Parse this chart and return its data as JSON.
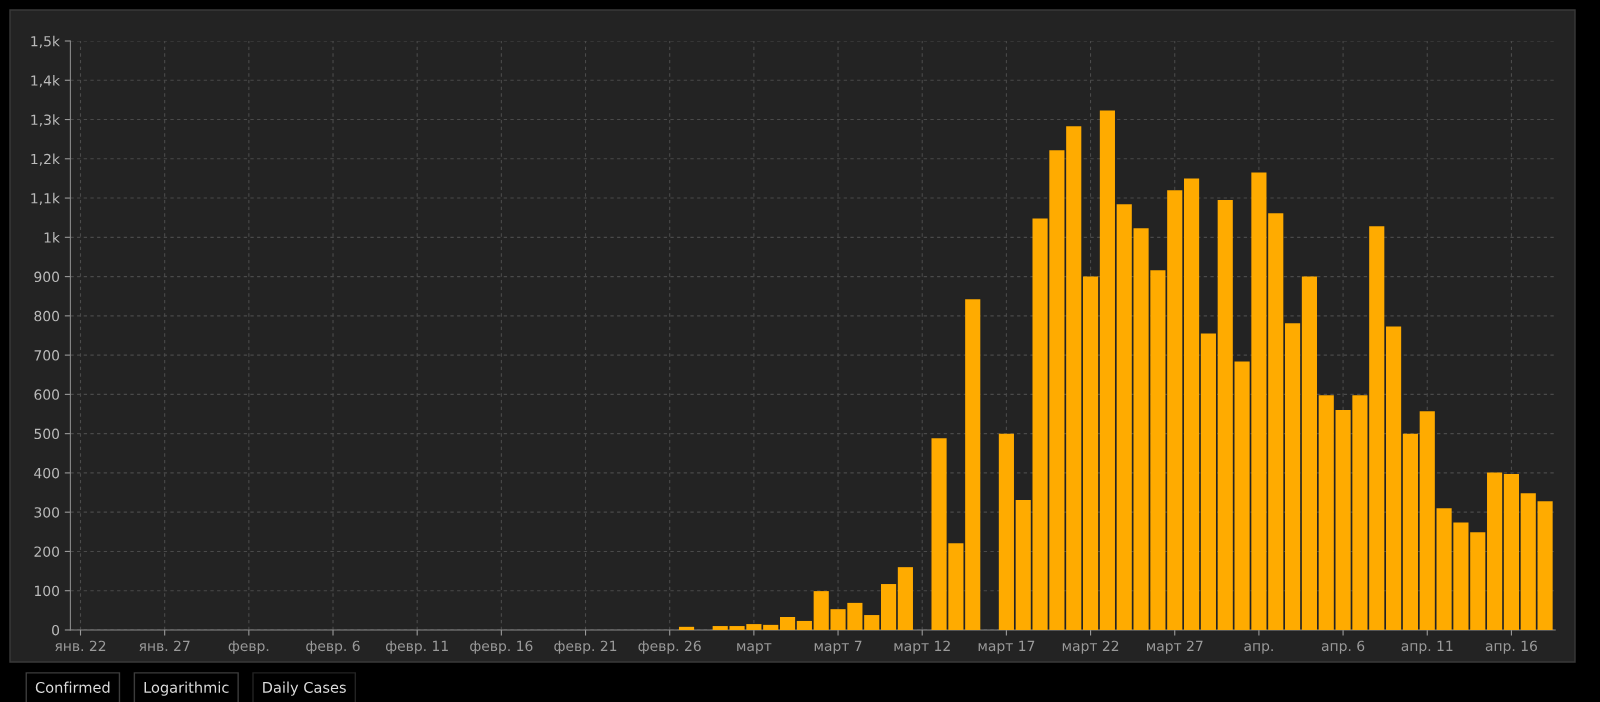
{
  "chart_data": {
    "type": "bar",
    "categories": [
      "янв. 22",
      null,
      null,
      null,
      null,
      "янв. 27",
      null,
      null,
      null,
      null,
      "февр.",
      null,
      null,
      null,
      null,
      "февр. 6",
      null,
      null,
      null,
      null,
      "февр. 11",
      null,
      null,
      null,
      null,
      "февр. 16",
      null,
      null,
      null,
      null,
      "февр. 21",
      null,
      null,
      null,
      null,
      "февр. 26",
      null,
      null,
      null,
      null,
      "март",
      null,
      null,
      null,
      null,
      "март 7",
      null,
      null,
      null,
      null,
      "март 12",
      null,
      null,
      null,
      null,
      "март 17",
      null,
      null,
      null,
      null,
      "март 22",
      null,
      null,
      null,
      null,
      "март 27",
      null,
      null,
      null,
      null,
      "апр.",
      null,
      null,
      null,
      null,
      "апр. 6",
      null,
      null,
      null,
      null,
      "апр. 11",
      null,
      null,
      null,
      null,
      "апр. 16",
      null,
      null
    ],
    "values": [
      0,
      0,
      0,
      0,
      0,
      0,
      0,
      0,
      0,
      0,
      0,
      0,
      0,
      0,
      0,
      0,
      0,
      0,
      0,
      0,
      0,
      0,
      0,
      0,
      0,
      0,
      0,
      0,
      0,
      0,
      0,
      0,
      0,
      0,
      0,
      0,
      8,
      0,
      10,
      10,
      15,
      13,
      33,
      23,
      99,
      53,
      69,
      38,
      117,
      160,
      0,
      488,
      221,
      842,
      0,
      500,
      331,
      1048,
      1222,
      1283,
      900,
      1323,
      1084,
      1023,
      916,
      1120,
      1150,
      755,
      1095,
      684,
      1165,
      1061,
      781,
      900,
      598,
      560,
      598,
      1028,
      773,
      500,
      557,
      310,
      274,
      249,
      401,
      397,
      348,
      328
    ],
    "color": "#ffab00",
    "ylim": [
      0,
      1500
    ],
    "yticks": [
      0,
      100,
      200,
      300,
      400,
      500,
      600,
      700,
      800,
      900,
      {
        "value": 1000,
        "label": "1k"
      },
      {
        "value": 1100,
        "label": "1,1k"
      },
      {
        "value": 1200,
        "label": "1,2k"
      },
      {
        "value": 1300,
        "label": "1,3k"
      },
      {
        "value": 1400,
        "label": "1,4k"
      },
      {
        "value": 1500,
        "label": "1,5k"
      }
    ],
    "grid": true,
    "annotations": [
      "Confirmed",
      "Logarithmic",
      "Daily Cases"
    ]
  }
}
